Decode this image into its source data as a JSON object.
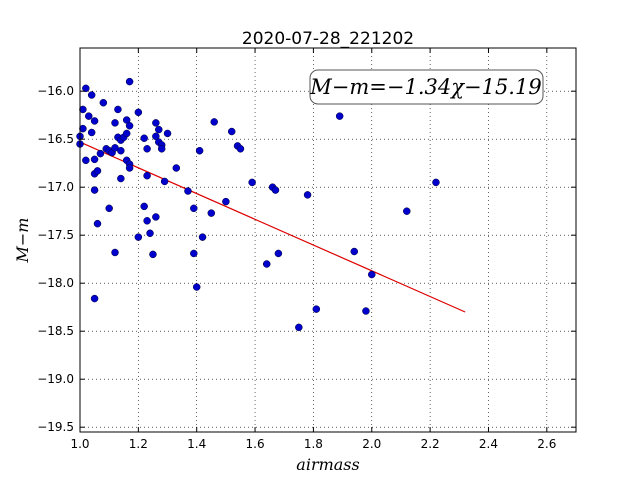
{
  "chart_data": {
    "type": "scatter",
    "title": "2020-07-28_221202",
    "xlabel": "airmass",
    "ylabel": "M−m",
    "annotation": "M−m=−1.34χ−15.19",
    "xlim": [
      1.0,
      2.7
    ],
    "ylim": [
      -19.55,
      -15.55
    ],
    "x_ticks": [
      1.0,
      1.2,
      1.4,
      1.6,
      1.8,
      2.0,
      2.2,
      2.4,
      2.6
    ],
    "x_tick_labels": [
      "1.0",
      "1.2",
      "1.4",
      "1.6",
      "1.8",
      "2.0",
      "2.2",
      "2.4",
      "2.6"
    ],
    "y_ticks": [
      -16.0,
      -16.5,
      -17.0,
      -17.5,
      -18.0,
      -18.5,
      -19.0,
      -19.5
    ],
    "y_tick_labels": [
      "−16.0",
      "−16.5",
      "−17.0",
      "−17.5",
      "−18.0",
      "−18.5",
      "−19.0",
      "−19.5"
    ],
    "grid": true,
    "point_color": "#0000cc",
    "fit_color": "#dd0000",
    "points": [
      [
        1.0,
        -16.47
      ],
      [
        1.0,
        -16.55
      ],
      [
        1.01,
        -16.19
      ],
      [
        1.01,
        -16.39
      ],
      [
        1.02,
        -15.97
      ],
      [
        1.03,
        -16.26
      ],
      [
        1.04,
        -16.04
      ],
      [
        1.05,
        -16.31
      ],
      [
        1.04,
        -16.43
      ],
      [
        1.02,
        -16.72
      ],
      [
        1.05,
        -16.71
      ],
      [
        1.05,
        -16.86
      ],
      [
        1.06,
        -16.83
      ],
      [
        1.07,
        -16.65
      ],
      [
        1.08,
        -16.12
      ],
      [
        1.05,
        -17.03
      ],
      [
        1.06,
        -17.38
      ],
      [
        1.05,
        -18.16
      ],
      [
        1.09,
        -16.6
      ],
      [
        1.1,
        -16.62
      ],
      [
        1.1,
        -17.22
      ],
      [
        1.11,
        -16.64
      ],
      [
        1.12,
        -16.59
      ],
      [
        1.12,
        -16.33
      ],
      [
        1.13,
        -16.19
      ],
      [
        1.13,
        -16.48
      ],
      [
        1.14,
        -16.51
      ],
      [
        1.15,
        -16.48
      ],
      [
        1.14,
        -16.62
      ],
      [
        1.16,
        -16.72
      ],
      [
        1.16,
        -16.44
      ],
      [
        1.16,
        -16.3
      ],
      [
        1.17,
        -15.9
      ],
      [
        1.17,
        -16.36
      ],
      [
        1.17,
        -16.76
      ],
      [
        1.17,
        -16.8
      ],
      [
        1.14,
        -16.91
      ],
      [
        1.12,
        -17.68
      ],
      [
        1.2,
        -16.22
      ],
      [
        1.22,
        -16.49
      ],
      [
        1.23,
        -16.6
      ],
      [
        1.23,
        -16.88
      ],
      [
        1.22,
        -17.2
      ],
      [
        1.23,
        -17.35
      ],
      [
        1.24,
        -17.48
      ],
      [
        1.2,
        -17.52
      ],
      [
        1.25,
        -17.7
      ],
      [
        1.26,
        -16.47
      ],
      [
        1.26,
        -16.33
      ],
      [
        1.27,
        -16.4
      ],
      [
        1.27,
        -16.53
      ],
      [
        1.28,
        -16.56
      ],
      [
        1.28,
        -16.6
      ],
      [
        1.29,
        -16.94
      ],
      [
        1.26,
        -17.31
      ],
      [
        1.3,
        -16.44
      ],
      [
        1.33,
        -16.8
      ],
      [
        1.37,
        -17.04
      ],
      [
        1.39,
        -17.22
      ],
      [
        1.41,
        -16.62
      ],
      [
        1.42,
        -17.52
      ],
      [
        1.39,
        -17.69
      ],
      [
        1.4,
        -18.04
      ],
      [
        1.45,
        -17.27
      ],
      [
        1.46,
        -16.32
      ],
      [
        1.5,
        -17.15
      ],
      [
        1.52,
        -16.42
      ],
      [
        1.54,
        -16.57
      ],
      [
        1.55,
        -16.6
      ],
      [
        1.59,
        -16.95
      ],
      [
        1.64,
        -17.8
      ],
      [
        1.66,
        -17.0
      ],
      [
        1.67,
        -17.03
      ],
      [
        1.68,
        -17.69
      ],
      [
        1.75,
        -18.46
      ],
      [
        1.78,
        -17.08
      ],
      [
        1.81,
        -18.27
      ],
      [
        1.89,
        -16.26
      ],
      [
        1.94,
        -17.67
      ],
      [
        1.98,
        -18.29
      ],
      [
        2.0,
        -17.91
      ],
      [
        2.12,
        -17.25
      ],
      [
        2.22,
        -16.95
      ]
    ],
    "fit_line": {
      "x": [
        1.0,
        2.32
      ],
      "y": [
        -16.53,
        -18.3
      ]
    }
  }
}
